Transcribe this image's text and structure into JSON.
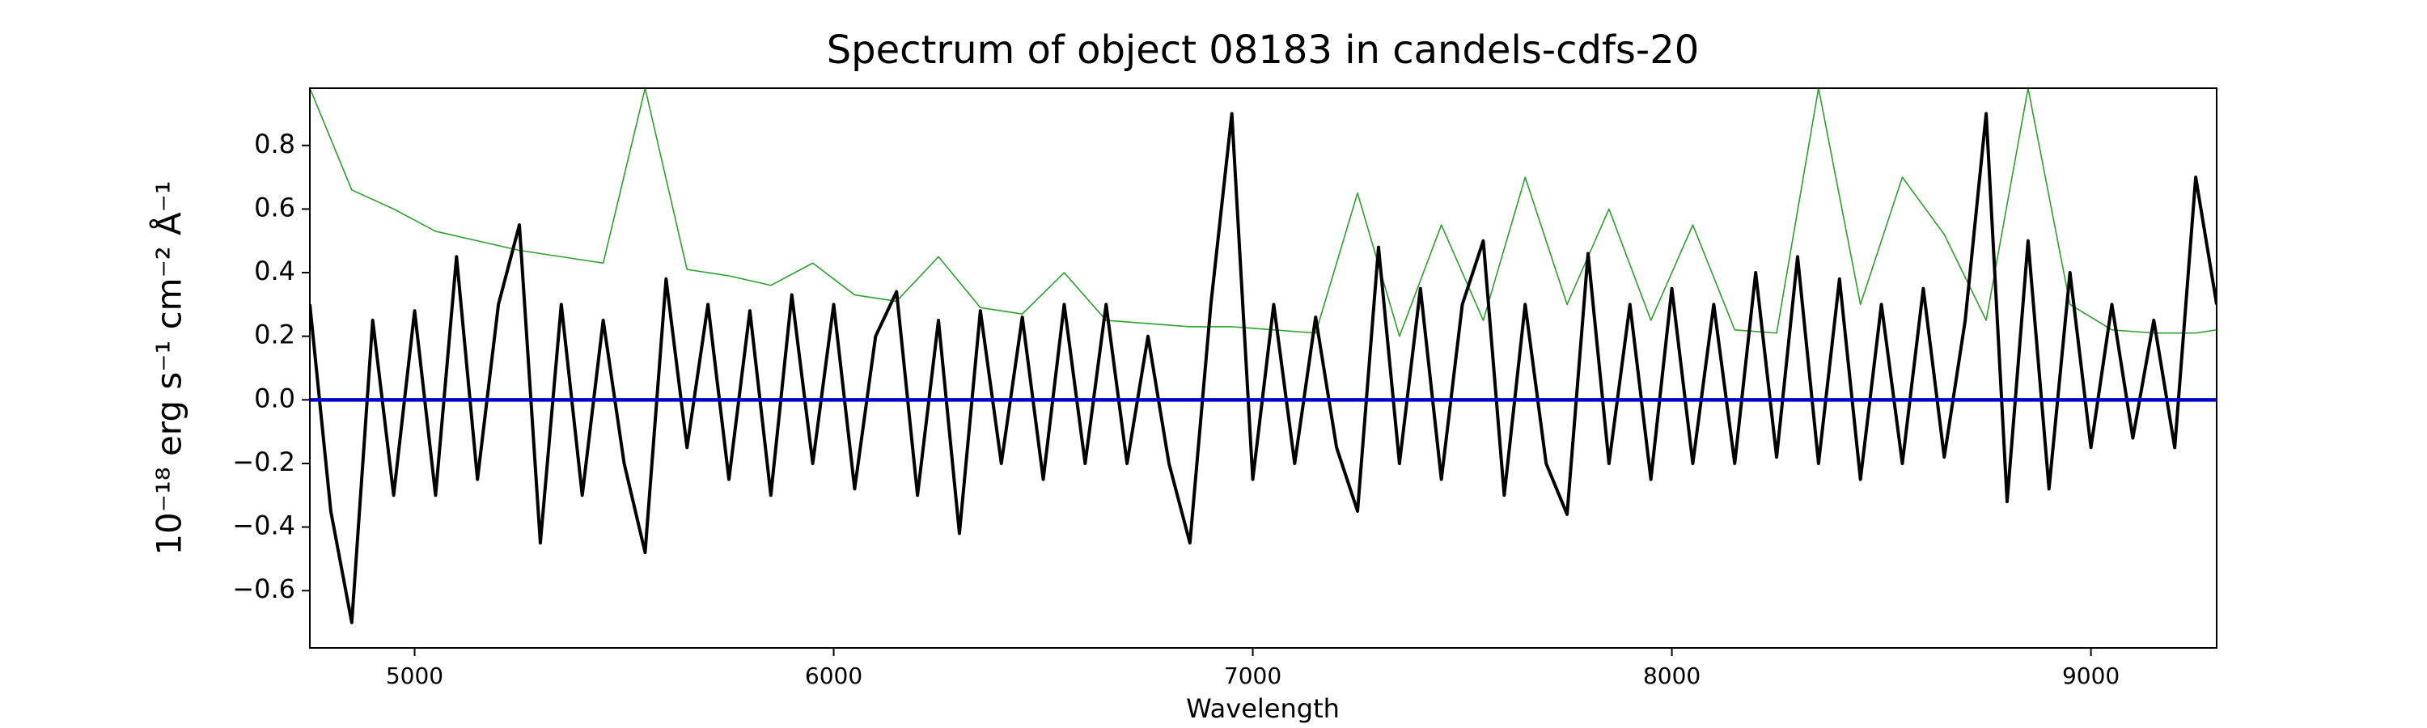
{
  "chart_data": {
    "type": "line",
    "title": "Spectrum of object 08183 in candels-cdfs-20",
    "x_label": "Wavelength",
    "y_label": "10⁻¹⁸ erg s⁻¹ cm⁻² Å⁻¹",
    "xlim": [
      4750,
      9300
    ],
    "ylim": [
      -0.78,
      0.98
    ],
    "xticks": [
      5000,
      6000,
      7000,
      8000,
      9000
    ],
    "yticks": [
      {
        "value": -0.6,
        "label": "−0.6"
      },
      {
        "value": -0.4,
        "label": "−0.4"
      },
      {
        "value": -0.2,
        "label": "−0.2"
      },
      {
        "value": 0.0,
        "label": "0.0"
      },
      {
        "value": 0.2,
        "label": "0.2"
      },
      {
        "value": 0.4,
        "label": "0.4"
      },
      {
        "value": 0.6,
        "label": "0.6"
      },
      {
        "value": 0.8,
        "label": "0.8"
      }
    ],
    "series": [
      {
        "color": "#2ca02c",
        "x": [
          4750,
          4850,
          4950,
          5050,
          5150,
          5250,
          5350,
          5450,
          5550,
          5650,
          5750,
          5850,
          5950,
          6050,
          6150,
          6250,
          6350,
          6450,
          6550,
          6650,
          6750,
          6850,
          6950,
          7050,
          7150,
          7250,
          7350,
          7450,
          7550,
          7650,
          7750,
          7850,
          7950,
          8050,
          8150,
          8250,
          8350,
          8450,
          8550,
          8650,
          8750,
          8850,
          8950,
          9050,
          9150,
          9250,
          9300
        ],
        "values": [
          0.98,
          0.66,
          0.6,
          0.53,
          0.5,
          0.47,
          0.45,
          0.43,
          0.98,
          0.41,
          0.39,
          0.36,
          0.43,
          0.33,
          0.31,
          0.45,
          0.29,
          0.27,
          0.4,
          0.25,
          0.24,
          0.23,
          0.23,
          0.22,
          0.21,
          0.65,
          0.2,
          0.55,
          0.25,
          0.7,
          0.3,
          0.6,
          0.25,
          0.55,
          0.22,
          0.21,
          0.98,
          0.3,
          0.7,
          0.52,
          0.25,
          0.98,
          0.3,
          0.22,
          0.21,
          0.21,
          0.22
        ]
      },
      {
        "color": "#000000",
        "x": [
          4750,
          4800,
          4850,
          4900,
          4950,
          5000,
          5050,
          5100,
          5150,
          5200,
          5250,
          5300,
          5350,
          5400,
          5450,
          5500,
          5550,
          5600,
          5650,
          5700,
          5750,
          5800,
          5850,
          5900,
          5950,
          6000,
          6050,
          6100,
          6150,
          6200,
          6250,
          6300,
          6350,
          6400,
          6450,
          6500,
          6550,
          6600,
          6650,
          6700,
          6750,
          6800,
          6850,
          6900,
          6950,
          7000,
          7050,
          7100,
          7150,
          7200,
          7250,
          7300,
          7350,
          7400,
          7450,
          7500,
          7550,
          7600,
          7650,
          7700,
          7750,
          7800,
          7850,
          7900,
          7950,
          8000,
          8050,
          8100,
          8150,
          8200,
          8250,
          8300,
          8350,
          8400,
          8450,
          8500,
          8550,
          8600,
          8650,
          8700,
          8750,
          8800,
          8850,
          8900,
          8950,
          9000,
          9050,
          9100,
          9150,
          9200,
          9250,
          9300
        ],
        "values": [
          0.3,
          -0.35,
          -0.7,
          0.25,
          -0.3,
          0.28,
          -0.3,
          0.45,
          -0.25,
          0.3,
          0.55,
          -0.45,
          0.3,
          -0.3,
          0.25,
          -0.2,
          -0.48,
          0.38,
          -0.15,
          0.3,
          -0.25,
          0.28,
          -0.3,
          0.33,
          -0.2,
          0.3,
          -0.28,
          0.2,
          0.34,
          -0.3,
          0.25,
          -0.42,
          0.28,
          -0.2,
          0.26,
          -0.25,
          0.3,
          -0.2,
          0.3,
          -0.2,
          0.2,
          -0.2,
          -0.45,
          0.3,
          0.9,
          -0.25,
          0.3,
          -0.2,
          0.26,
          -0.15,
          -0.35,
          0.48,
          -0.2,
          0.35,
          -0.25,
          0.3,
          0.5,
          -0.3,
          0.3,
          -0.2,
          -0.36,
          0.46,
          -0.2,
          0.3,
          -0.25,
          0.35,
          -0.2,
          0.3,
          -0.2,
          0.4,
          -0.18,
          0.45,
          -0.2,
          0.38,
          -0.25,
          0.3,
          -0.2,
          0.35,
          -0.18,
          0.25,
          0.9,
          -0.32,
          0.5,
          -0.28,
          0.4,
          -0.15,
          0.3,
          -0.12,
          0.25,
          -0.15,
          0.7,
          0.3
        ]
      },
      {
        "color": "#0000cc",
        "x": [
          4750,
          9300
        ],
        "values": [
          0,
          0
        ]
      }
    ]
  }
}
